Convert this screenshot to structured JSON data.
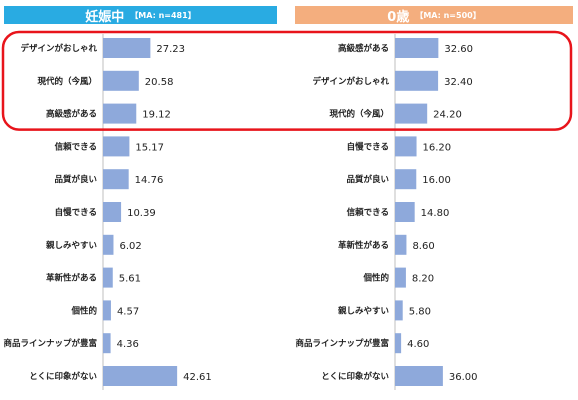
{
  "colors": {
    "left_header_bg": "#29ABE2",
    "right_header_bg": "#F4AE7E",
    "bar": "#8EA9DB",
    "axis": "#BFBFBF",
    "highlight_border": "#E8141B"
  },
  "chart_data": [
    {
      "type": "bar",
      "orientation": "horizontal",
      "title": "妊娠中",
      "subtitle": "【MA: n=481】",
      "categories": [
        "デザインがおしゃれ",
        "現代的（今風）",
        "高級感がある",
        "信頼できる",
        "品質が良い",
        "自慢できる",
        "親しみやすい",
        "革新性がある",
        "個性的",
        "商品ラインナップが豊富",
        "とくに印象がない"
      ],
      "values": [
        27.23,
        20.58,
        19.12,
        15.17,
        14.76,
        10.39,
        6.02,
        5.61,
        4.57,
        4.36,
        42.61
      ],
      "value_labels": [
        "27.23",
        "20.58",
        "19.12",
        "15.17",
        "14.76",
        "10.39",
        "6.02",
        "5.61",
        "4.57",
        "4.36",
        "42.61"
      ],
      "xlim": [
        0,
        50
      ]
    },
    {
      "type": "bar",
      "orientation": "horizontal",
      "title": "0歳",
      "subtitle": "【MA: n=500】",
      "categories": [
        "高級感がある",
        "デザインがおしゃれ",
        "現代的（今風）",
        "自慢できる",
        "品質が良い",
        "信頼できる",
        "革新性がある",
        "個性的",
        "親しみやすい",
        "商品ラインナップが豊富",
        "とくに印象がない"
      ],
      "values": [
        32.6,
        32.4,
        24.2,
        16.2,
        16.0,
        14.8,
        8.6,
        8.2,
        5.8,
        4.6,
        36.0
      ],
      "value_labels": [
        "32.60",
        "32.40",
        "24.20",
        "16.20",
        "16.00",
        "14.80",
        "8.60",
        "8.20",
        "5.80",
        "4.60",
        "36.00"
      ],
      "xlim": [
        0,
        50
      ]
    }
  ]
}
